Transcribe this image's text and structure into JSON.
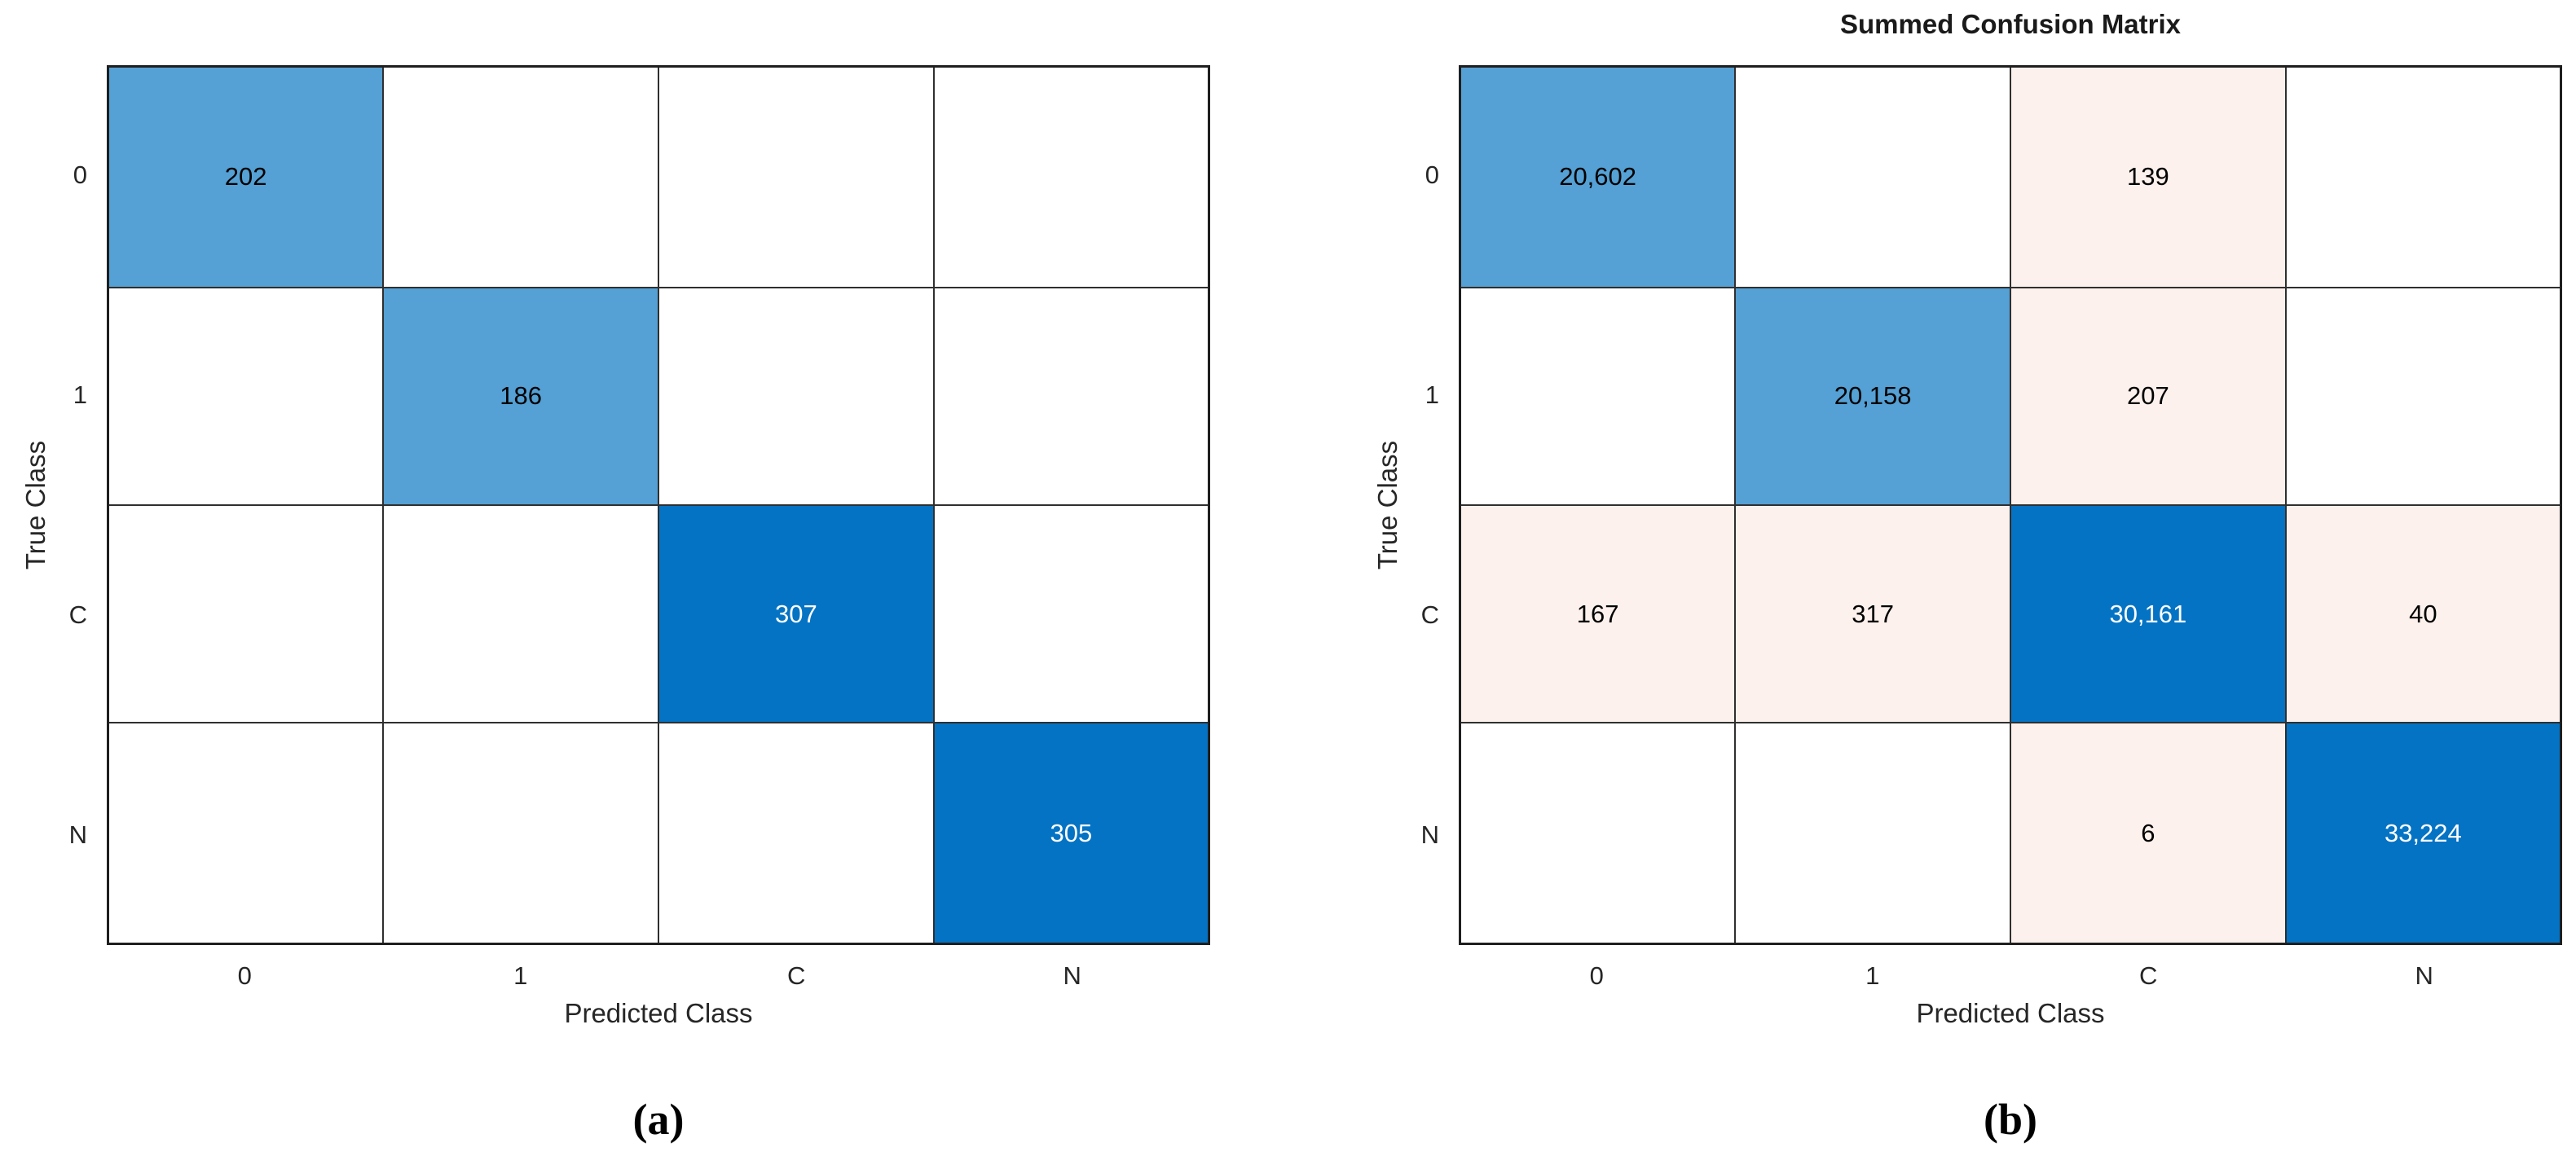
{
  "colors": {
    "diagonal_light_blue": "#55A0D4",
    "diagonal_dark_blue": "#0473C4",
    "offdiagonal_pink": "#FCF1EC",
    "empty_white": "#FFFFFF",
    "grid_line": "#2F2F2F",
    "axis_text": "#262626"
  },
  "panels": [
    {
      "caption": "(a)",
      "title": "",
      "x_label": "Predicted Class",
      "y_label": "True Class",
      "x_ticks": [
        "0",
        "1",
        "C",
        "N"
      ],
      "y_ticks": [
        "0",
        "1",
        "C",
        "N"
      ],
      "cells": [
        [
          {
            "v": "202",
            "bg": "diagonal_light_blue",
            "fg": "#000000"
          },
          {
            "v": "",
            "bg": "empty_white",
            "fg": "#000000"
          },
          {
            "v": "",
            "bg": "empty_white",
            "fg": "#000000"
          },
          {
            "v": "",
            "bg": "empty_white",
            "fg": "#000000"
          }
        ],
        [
          {
            "v": "",
            "bg": "empty_white",
            "fg": "#000000"
          },
          {
            "v": "186",
            "bg": "diagonal_light_blue",
            "fg": "#000000"
          },
          {
            "v": "",
            "bg": "empty_white",
            "fg": "#000000"
          },
          {
            "v": "",
            "bg": "empty_white",
            "fg": "#000000"
          }
        ],
        [
          {
            "v": "",
            "bg": "empty_white",
            "fg": "#000000"
          },
          {
            "v": "",
            "bg": "empty_white",
            "fg": "#000000"
          },
          {
            "v": "307",
            "bg": "diagonal_dark_blue",
            "fg": "#FFFFFF"
          },
          {
            "v": "",
            "bg": "empty_white",
            "fg": "#000000"
          }
        ],
        [
          {
            "v": "",
            "bg": "empty_white",
            "fg": "#000000"
          },
          {
            "v": "",
            "bg": "empty_white",
            "fg": "#000000"
          },
          {
            "v": "",
            "bg": "empty_white",
            "fg": "#000000"
          },
          {
            "v": "305",
            "bg": "diagonal_dark_blue",
            "fg": "#FFFFFF"
          }
        ]
      ]
    },
    {
      "caption": "(b)",
      "title": "Summed Confusion Matrix",
      "x_label": "Predicted Class",
      "y_label": "True Class",
      "x_ticks": [
        "0",
        "1",
        "C",
        "N"
      ],
      "y_ticks": [
        "0",
        "1",
        "C",
        "N"
      ],
      "cells": [
        [
          {
            "v": "20,602",
            "bg": "diagonal_light_blue",
            "fg": "#000000"
          },
          {
            "v": "",
            "bg": "empty_white",
            "fg": "#000000"
          },
          {
            "v": "139",
            "bg": "offdiagonal_pink",
            "fg": "#000000"
          },
          {
            "v": "",
            "bg": "empty_white",
            "fg": "#000000"
          }
        ],
        [
          {
            "v": "",
            "bg": "empty_white",
            "fg": "#000000"
          },
          {
            "v": "20,158",
            "bg": "diagonal_light_blue",
            "fg": "#000000"
          },
          {
            "v": "207",
            "bg": "offdiagonal_pink",
            "fg": "#000000"
          },
          {
            "v": "",
            "bg": "empty_white",
            "fg": "#000000"
          }
        ],
        [
          {
            "v": "167",
            "bg": "offdiagonal_pink",
            "fg": "#000000"
          },
          {
            "v": "317",
            "bg": "offdiagonal_pink",
            "fg": "#000000"
          },
          {
            "v": "30,161",
            "bg": "diagonal_dark_blue",
            "fg": "#FFFFFF"
          },
          {
            "v": "40",
            "bg": "offdiagonal_pink",
            "fg": "#000000"
          }
        ],
        [
          {
            "v": "",
            "bg": "empty_white",
            "fg": "#000000"
          },
          {
            "v": "",
            "bg": "empty_white",
            "fg": "#000000"
          },
          {
            "v": "6",
            "bg": "offdiagonal_pink",
            "fg": "#000000"
          },
          {
            "v": "33,224",
            "bg": "diagonal_dark_blue",
            "fg": "#FFFFFF"
          }
        ]
      ]
    }
  ],
  "chart_data": [
    {
      "type": "heatmap",
      "title": "",
      "caption": "(a)",
      "xlabel": "Predicted Class",
      "ylabel": "True Class",
      "x_categories": [
        "0",
        "1",
        "C",
        "N"
      ],
      "y_categories": [
        "0",
        "1",
        "C",
        "N"
      ],
      "values": [
        [
          202,
          null,
          null,
          null
        ],
        [
          null,
          186,
          null,
          null
        ],
        [
          null,
          null,
          307,
          null
        ],
        [
          null,
          null,
          null,
          305
        ]
      ],
      "legend": "none",
      "grid": true
    },
    {
      "type": "heatmap",
      "title": "Summed Confusion Matrix",
      "caption": "(b)",
      "xlabel": "Predicted Class",
      "ylabel": "True Class",
      "x_categories": [
        "0",
        "1",
        "C",
        "N"
      ],
      "y_categories": [
        "0",
        "1",
        "C",
        "N"
      ],
      "values": [
        [
          20602,
          null,
          139,
          null
        ],
        [
          null,
          20158,
          207,
          null
        ],
        [
          167,
          317,
          30161,
          40
        ],
        [
          null,
          null,
          6,
          33224
        ]
      ],
      "legend": "none",
      "grid": true
    }
  ]
}
